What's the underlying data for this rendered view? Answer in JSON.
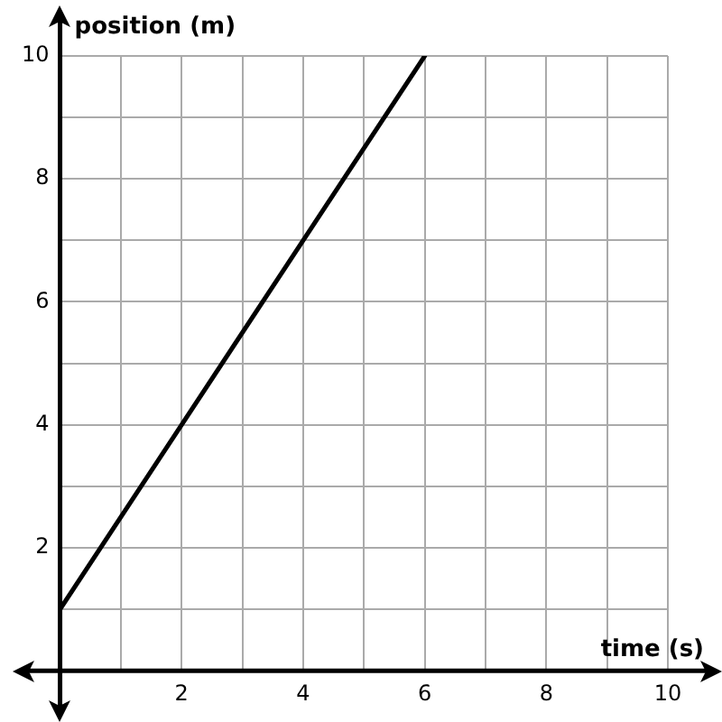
{
  "chart_data": {
    "type": "line",
    "xlabel": "time (s)",
    "ylabel": "position (m)",
    "x": [
      0,
      6
    ],
    "series": [
      {
        "color": "#000000",
        "values": [
          1,
          10
        ]
      }
    ],
    "xlim": [
      0,
      10
    ],
    "ylim": [
      0,
      10
    ],
    "xticks": [
      {
        "value": 0,
        "label": null
      },
      {
        "value": 1,
        "label": null
      },
      2,
      {
        "value": 3,
        "label": null
      },
      4,
      {
        "value": 5,
        "label": null
      },
      6,
      {
        "value": 7,
        "label": null
      },
      8,
      {
        "value": 9,
        "label": null
      },
      10
    ],
    "yticks": [
      {
        "value": 0,
        "label": null
      },
      {
        "value": 1,
        "label": null
      },
      2,
      {
        "value": 3,
        "label": null
      },
      4,
      {
        "value": 5,
        "label": null
      },
      6,
      {
        "value": 7,
        "label": null
      },
      8,
      {
        "value": 9,
        "label": null
      },
      10
    ],
    "grid": true,
    "legend": false,
    "marker": "none",
    "line_style": "solid"
  }
}
